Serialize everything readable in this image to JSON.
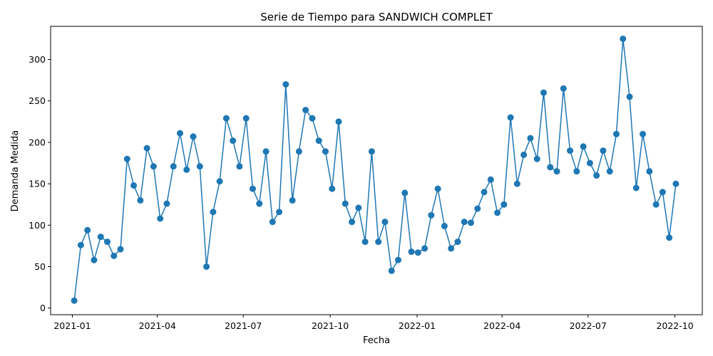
{
  "chart_data": {
    "type": "line",
    "title": "Serie de Tiempo para SANDWICH COMPLET",
    "xlabel": "Fecha",
    "ylabel": "Demanda Medida",
    "x_ticks": [
      "2021-01",
      "2021-04",
      "2021-07",
      "2021-10",
      "2022-01",
      "2022-04",
      "2022-07",
      "2022-10"
    ],
    "y_ticks": [
      0,
      50,
      100,
      150,
      200,
      250,
      300
    ],
    "ylim": [
      -8,
      340
    ],
    "xlim": [
      "2020-12-09",
      "2022-10-30"
    ],
    "grid": false,
    "marker": "circle",
    "line_color": "#1f77b4",
    "series": [
      {
        "x": [
          "2021-01-03",
          "2021-01-10",
          "2021-01-17",
          "2021-01-24",
          "2021-01-31",
          "2021-02-07",
          "2021-02-14",
          "2021-02-21",
          "2021-02-28",
          "2021-03-07",
          "2021-03-14",
          "2021-03-21",
          "2021-03-28",
          "2021-04-04",
          "2021-04-11",
          "2021-04-18",
          "2021-04-25",
          "2021-05-02",
          "2021-05-09",
          "2021-05-16",
          "2021-05-23",
          "2021-05-30",
          "2021-06-06",
          "2021-06-13",
          "2021-06-20",
          "2021-06-27",
          "2021-07-04",
          "2021-07-11",
          "2021-07-18",
          "2021-07-25",
          "2021-08-01",
          "2021-08-08",
          "2021-08-15",
          "2021-08-22",
          "2021-08-29",
          "2021-09-05",
          "2021-09-12",
          "2021-09-19",
          "2021-09-26",
          "2021-10-03",
          "2021-10-10",
          "2021-10-17",
          "2021-10-24",
          "2021-10-31",
          "2021-11-07",
          "2021-11-14",
          "2021-11-21",
          "2021-11-28",
          "2021-12-05",
          "2021-12-12",
          "2021-12-19",
          "2021-12-26",
          "2022-01-02",
          "2022-01-09",
          "2022-01-16",
          "2022-01-23",
          "2022-01-30",
          "2022-02-06",
          "2022-02-13",
          "2022-02-20",
          "2022-02-27",
          "2022-03-06",
          "2022-03-13",
          "2022-03-20",
          "2022-03-27",
          "2022-04-03",
          "2022-04-10",
          "2022-04-17",
          "2022-04-24",
          "2022-05-01",
          "2022-05-08",
          "2022-05-15",
          "2022-05-22",
          "2022-05-29",
          "2022-06-05",
          "2022-06-12",
          "2022-06-19",
          "2022-06-26",
          "2022-07-03",
          "2022-07-10",
          "2022-07-17",
          "2022-07-24",
          "2022-07-31",
          "2022-08-07",
          "2022-08-14",
          "2022-08-21",
          "2022-08-28",
          "2022-09-04",
          "2022-09-11",
          "2022-09-18",
          "2022-09-25",
          "2022-10-02"
        ],
        "y": [
          9,
          76,
          94,
          58,
          86,
          80,
          63,
          71,
          180,
          148,
          130,
          193,
          171,
          108,
          126,
          171,
          211,
          167,
          207,
          171,
          50,
          116,
          153,
          229,
          202,
          171,
          229,
          144,
          126,
          189,
          104,
          116,
          270,
          130,
          189,
          239,
          229,
          202,
          189,
          144,
          225,
          126,
          104,
          121,
          80,
          189,
          80,
          104,
          45,
          58,
          139,
          68,
          67,
          72,
          112,
          144,
          99,
          72,
          80,
          104,
          103,
          120,
          140,
          155,
          115,
          125,
          230,
          150,
          185,
          205,
          180,
          260,
          170,
          165,
          265,
          190,
          165,
          195,
          175,
          160,
          190,
          165,
          210,
          325,
          255,
          145,
          210,
          165,
          125,
          140,
          85,
          150
        ]
      }
    ]
  }
}
